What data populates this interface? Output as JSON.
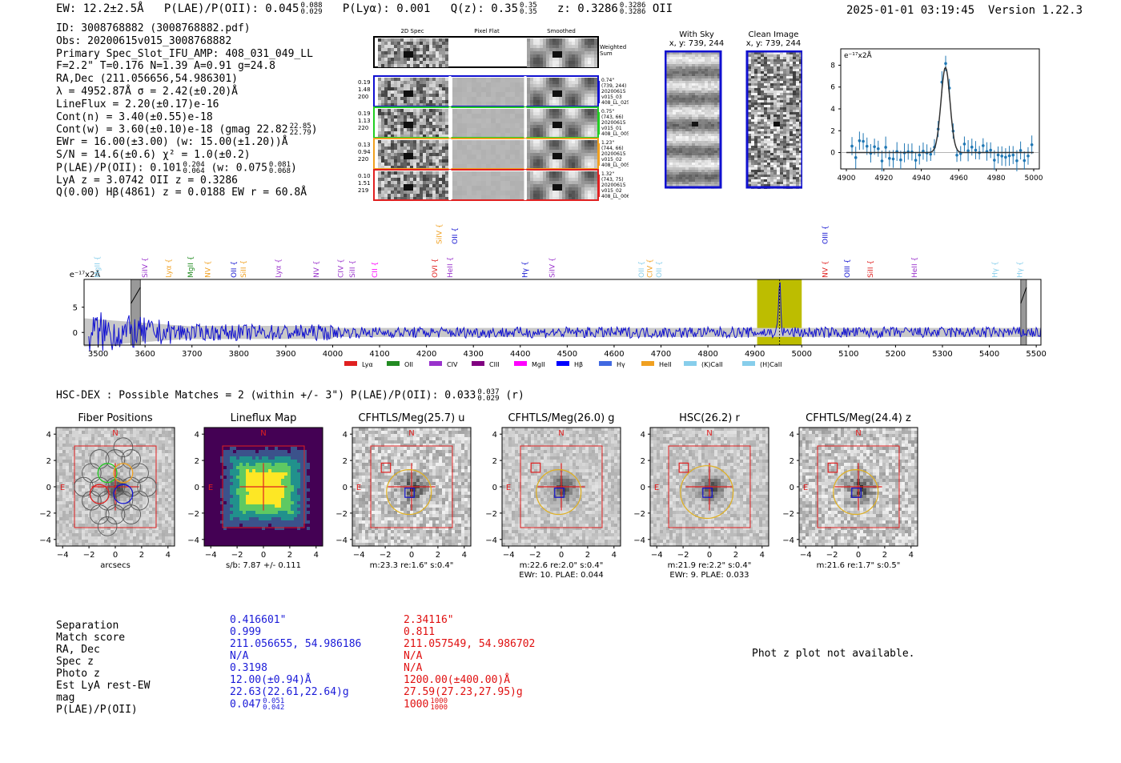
{
  "header": {
    "ew": "EW: 12.2±2.5Å",
    "plae_label": "P(LAE)/P(OII): 0.045",
    "plae_hi": "0.088",
    "plae_lo": "0.029",
    "plya": "P(Lyα): 0.001",
    "qz_label": "Q(z): 0.35",
    "qz_hi": "0.35",
    "qz_lo": "0.35",
    "z_label": "z: 0.3286",
    "z_hi": "0.3286",
    "z_lo": "0.3286",
    "z_line": "OII",
    "timestamp": "2025-01-01 03:19:45",
    "version": "Version 1.22.3"
  },
  "info": {
    "id": "ID: 3008768882 (3008768882.pdf)",
    "obs": "Obs: 20200615v015_3008768882",
    "primary": "Primary Spec_Slot_IFU_AMP: 408_031_049_LL",
    "fit": "F=2.2\"  T=0.176  N=1.39  A=0.91  g=24.8",
    "radec": "RA,Dec (211.056656,54.986301)",
    "lambda": "λ = 4952.87Å  σ = 2.42(±0.20)Å",
    "lineflux": "LineFlux = 2.20(±0.17)e-16",
    "contn": "Cont(n) = 3.40(±0.55)e-18",
    "contw": "Cont(w) = 3.60(±0.10)e-18 (gmag 22.82",
    "contw_hi": "22.85",
    "contw_lo": "22.79",
    "contw_end": ")",
    "ewr": "EWr = 16.00(±3.00) (w: 15.00(±1.20))Å",
    "sn": "S/N = 14.6(±0.6)  χ² = 1.0(±0.2)",
    "plae": "P(LAE)/P(OII): 0.101",
    "plae_hi": "0.204",
    "plae_lo": "0.064",
    "plae_w": "(w: 0.075",
    "plae_w_hi": "0.081",
    "plae_w_lo": "0.068",
    "plae_end": ")",
    "lyaz": "LyA z = 3.0742  OII z = 0.3286",
    "q": "Q(0.00) Hβ(4861) z = 0.0188  EW r = 60.8Å"
  },
  "cutout_panel": {
    "col_2d": "2D Spec",
    "col_flat": "Pixel Flat",
    "col_smooth": "Smoothed",
    "weighted": "Weighted",
    "sum": "Sum",
    "rows": [
      {
        "a": "0.19",
        "b": "1.48",
        "c": "200",
        "d1": "0.74\"",
        "d2": "(739, 244)",
        "d3": "20200615",
        "d4": "v015_03",
        "d5": "408_LL_025",
        "color": "#1010d0"
      },
      {
        "a": "0.19",
        "b": "1.13",
        "c": "220",
        "d1": "0.75\"",
        "d2": "(743, 66)",
        "d3": "20200615",
        "d4": "v015_01",
        "d5": "408_LL_005",
        "color": "#22cc22"
      },
      {
        "a": "0.13",
        "b": "0.94",
        "c": "220",
        "d1": "1.23\"",
        "d2": "(744, 66)",
        "d3": "20200615",
        "d4": "v015_02",
        "d5": "408_LL_005",
        "color": "#f0a020"
      },
      {
        "a": "0.10",
        "b": "1.51",
        "c": "219",
        "d1": "1.32\"",
        "d2": "(743, 75)",
        "d3": "20200615",
        "d4": "v015_02",
        "d5": "408_LL_006",
        "color": "#e02020"
      }
    ]
  },
  "sky": {
    "with_sky": "With Sky",
    "with_sky_xy": "x, y: 739, 244",
    "clean": "Clean Image",
    "clean_xy": "x, y: 739, 244"
  },
  "zoom_chart": {
    "type": "line",
    "unit_label": "e⁻¹⁷x2Å",
    "xlim": [
      4897,
      5003
    ],
    "ylim": [
      -1.5,
      9.5
    ],
    "xticks": [
      4900,
      4920,
      4940,
      4960,
      4980,
      5000
    ],
    "yticks": [
      0,
      2,
      4,
      6,
      8
    ],
    "gauss": {
      "amp": 7.8,
      "center": 4952.9,
      "sigma": 2.4,
      "base": 0.0
    }
  },
  "chart_data": {
    "type": "line",
    "title": "",
    "unit_label": "e⁻¹⁷x2Å",
    "xlim": [
      3470,
      5510
    ],
    "ylim": [
      -2.5,
      10.5
    ],
    "xticks": [
      3500,
      3600,
      3700,
      3800,
      3900,
      4000,
      4100,
      4200,
      4300,
      4400,
      4500,
      4600,
      4700,
      4800,
      4900,
      5000,
      5100,
      5200,
      5300,
      5400,
      5500
    ],
    "yticks": [
      0,
      5
    ],
    "highlight_range": [
      4905,
      5000
    ],
    "peak": {
      "x": 4952.9,
      "y": 10.0
    },
    "masked": [
      [
        3570,
        3590
      ],
      [
        5467,
        5479
      ]
    ],
    "lines": [
      {
        "name": "MgII",
        "x": 3498,
        "color": "#87ceeb"
      },
      {
        "name": "SiIV",
        "x": 3600,
        "color": "#9932cc"
      },
      {
        "name": "Lyα",
        "x": 3650,
        "color": "#f0a020"
      },
      {
        "name": "MgII",
        "x": 3697,
        "color": "#228b22"
      },
      {
        "name": "NV",
        "x": 3734,
        "color": "#f0a020"
      },
      {
        "name": "OII",
        "x": 3789,
        "color": "#1010d0"
      },
      {
        "name": "SiII",
        "x": 3810,
        "color": "#f0a020"
      },
      {
        "name": "Lyα",
        "x": 3884,
        "color": "#9932cc"
      },
      {
        "name": "NV",
        "x": 3965,
        "color": "#9932cc"
      },
      {
        "name": "CIV",
        "x": 4017,
        "color": "#9932cc"
      },
      {
        "name": "SiII",
        "x": 4042,
        "color": "#9932cc"
      },
      {
        "name": "CII",
        "x": 4090,
        "color": "#ff00ff"
      },
      {
        "name": "SiIV",
        "x": 4227,
        "color": "#f0a020",
        "high": true
      },
      {
        "name": "OVI",
        "x": 4218,
        "color": "#e02020"
      },
      {
        "name": "OII",
        "x": 4260,
        "color": "#1010d0",
        "high": true
      },
      {
        "name": "HeII",
        "x": 4250,
        "color": "#9932cc"
      },
      {
        "name": "Hγ",
        "x": 4410,
        "color": "#1010d0"
      },
      {
        "name": "SiIV",
        "x": 4468,
        "color": "#9932cc"
      },
      {
        "name": "OII",
        "x": 4658,
        "color": "#87ceeb"
      },
      {
        "name": "CIV",
        "x": 4676,
        "color": "#f0a020"
      },
      {
        "name": "OII",
        "x": 4696,
        "color": "#87ceeb"
      },
      {
        "name": "OIII",
        "x": 5050,
        "color": "#1010d0",
        "high": true
      },
      {
        "name": "NV",
        "x": 5050,
        "color": "#e02020"
      },
      {
        "name": "OIII",
        "x": 5097,
        "color": "#1010d0"
      },
      {
        "name": "SiII",
        "x": 5146,
        "color": "#e02020"
      },
      {
        "name": "HeII",
        "x": 5240,
        "color": "#9932cc"
      },
      {
        "name": "Hγ",
        "x": 5412,
        "color": "#87ceeb"
      },
      {
        "name": "Hγ",
        "x": 5465,
        "color": "#87ceeb"
      }
    ],
    "legend": [
      {
        "name": "Lyα",
        "color": "#e02020"
      },
      {
        "name": "OII",
        "color": "#228b22"
      },
      {
        "name": "CIV",
        "color": "#9932cc"
      },
      {
        "name": "CIII",
        "color": "#800080"
      },
      {
        "name": "MgII",
        "color": "#ff00ff"
      },
      {
        "name": "Hβ",
        "color": "#0000ff"
      },
      {
        "name": "Hγ",
        "color": "#4169e1"
      },
      {
        "name": "HeII",
        "color": "#f0a020"
      },
      {
        "name": "(K)CaII",
        "color": "#87ceeb"
      },
      {
        "name": "(H)CaII",
        "color": "#87ceeb"
      }
    ]
  },
  "hsc": {
    "title": "HSC-DEX : Possible Matches = 2 (within +/- 3\")  P(LAE)/P(OII): 0.033",
    "hi": "0.037",
    "lo": "0.029",
    "band": "(r)"
  },
  "cutouts": [
    {
      "title": "Fiber Positions",
      "cap1": "arcsecs",
      "cap2": ""
    },
    {
      "title": "Lineflux Map",
      "cap1": "s/b: 7.87 +/- 0.111",
      "cap2": ""
    },
    {
      "title": "CFHTLS/Meg(25.7) u",
      "cap1": "m:23.3  re:1.6\"  s:0.4\"",
      "cap2": ""
    },
    {
      "title": "CFHTLS/Meg(26.0) g",
      "cap1": "m:22.6  re:2.0\"  s:0.4\"",
      "cap2": "EWr: 10. PLAE: 0.044"
    },
    {
      "title": "HSC(26.2) r",
      "cap1": "m:21.9  re:2.2\"  s:0.4\"",
      "cap2": "EWr: 9. PLAE: 0.033"
    },
    {
      "title": "CFHTLS/Meg(24.4) z",
      "cap1": "m:21.6  re:1.7\"  s:0.5\"",
      "cap2": ""
    }
  ],
  "axis": {
    "n": "N",
    "e": "E",
    "ticks": [
      "−4",
      "−2",
      "0",
      "2",
      "4"
    ]
  },
  "table": {
    "labels": [
      "Separation",
      "Match score",
      "RA, Dec",
      "Spec z",
      "Photo z",
      "Est LyA rest-EW",
      "mag",
      "P(LAE)/P(OII)"
    ],
    "col1": [
      "0.416601\"",
      "0.999",
      "211.056655, 54.986186",
      "N/A",
      "0.3198",
      "12.00(±0.94)Å",
      "22.63(22.61,22.64)g",
      "0.047"
    ],
    "col1_hi": "0.051",
    "col1_lo": "0.042",
    "col2": [
      "2.34116\"",
      "0.811",
      "211.057549, 54.986702",
      "N/A",
      "N/A",
      "1200.00(±400.00)Å",
      "27.59(27.23,27.95)g",
      "1000"
    ],
    "col2_hi": "1000",
    "col2_lo": "1000"
  },
  "photz": "Phot z plot not available."
}
